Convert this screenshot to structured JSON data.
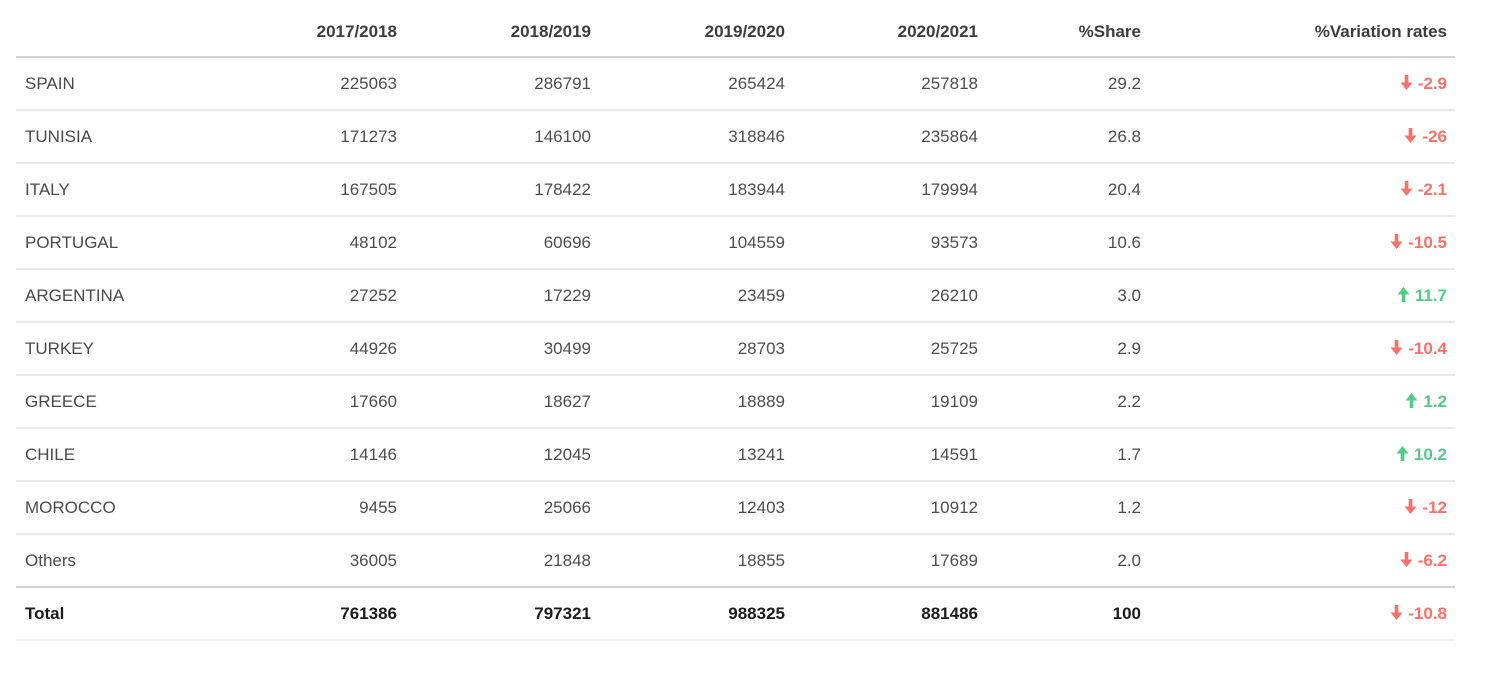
{
  "table": {
    "columns": [
      "",
      "2017/2018",
      "2018/2019",
      "2019/2020",
      "2020/2021",
      "%Share",
      "%Variation rates"
    ],
    "rows": [
      {
        "name": "SPAIN",
        "values": [
          "225063",
          "286791",
          "265424",
          "257818"
        ],
        "share": "29.2",
        "variation": {
          "direction": "down",
          "value": "-2.9"
        }
      },
      {
        "name": "TUNISIA",
        "values": [
          "171273",
          "146100",
          "318846",
          "235864"
        ],
        "share": "26.8",
        "variation": {
          "direction": "down",
          "value": "-26"
        }
      },
      {
        "name": "ITALY",
        "values": [
          "167505",
          "178422",
          "183944",
          "179994"
        ],
        "share": "20.4",
        "variation": {
          "direction": "down",
          "value": "-2.1"
        }
      },
      {
        "name": "PORTUGAL",
        "values": [
          "48102",
          "60696",
          "104559",
          "93573"
        ],
        "share": "10.6",
        "variation": {
          "direction": "down",
          "value": "-10.5"
        }
      },
      {
        "name": "ARGENTINA",
        "values": [
          "27252",
          "17229",
          "23459",
          "26210"
        ],
        "share": "3.0",
        "variation": {
          "direction": "up",
          "value": "11.7"
        }
      },
      {
        "name": "TURKEY",
        "values": [
          "44926",
          "30499",
          "28703",
          "25725"
        ],
        "share": "2.9",
        "variation": {
          "direction": "down",
          "value": "-10.4"
        }
      },
      {
        "name": "GREECE",
        "values": [
          "17660",
          "18627",
          "18889",
          "19109"
        ],
        "share": "2.2",
        "variation": {
          "direction": "up",
          "value": "1.2"
        }
      },
      {
        "name": "CHILE",
        "values": [
          "14146",
          "12045",
          "13241",
          "14591"
        ],
        "share": "1.7",
        "variation": {
          "direction": "up",
          "value": "10.2"
        }
      },
      {
        "name": "MOROCCO",
        "values": [
          "9455",
          "25066",
          "12403",
          "10912"
        ],
        "share": "1.2",
        "variation": {
          "direction": "down",
          "value": "-12"
        }
      },
      {
        "name": "Others",
        "values": [
          "36005",
          "21848",
          "18855",
          "17689"
        ],
        "share": "2.0",
        "variation": {
          "direction": "down",
          "value": "-6.2"
        }
      }
    ],
    "total": {
      "name": "Total",
      "values": [
        "761386",
        "797321",
        "988325",
        "881486"
      ],
      "share": "100",
      "variation": {
        "direction": "down",
        "value": "-10.8"
      }
    }
  },
  "colors": {
    "increase": "#53c98b",
    "decrease": "#f97168",
    "header_text": "#3d3d3d",
    "body_text": "#4e4e4e",
    "row_border": "#e9e9e9",
    "strong_border": "#d2d2d2"
  },
  "chart_data": {
    "type": "table",
    "title": "",
    "columns": [
      "",
      "2017/2018",
      "2018/2019",
      "2019/2020",
      "2020/2021",
      "%Share",
      "%Variation rates"
    ],
    "rows": [
      [
        "SPAIN",
        225063,
        286791,
        265424,
        257818,
        29.2,
        -2.9
      ],
      [
        "TUNISIA",
        171273,
        146100,
        318846,
        235864,
        26.8,
        -26
      ],
      [
        "ITALY",
        167505,
        178422,
        183944,
        179994,
        20.4,
        -2.1
      ],
      [
        "PORTUGAL",
        48102,
        60696,
        104559,
        93573,
        10.6,
        -10.5
      ],
      [
        "ARGENTINA",
        27252,
        17229,
        23459,
        26210,
        3.0,
        11.7
      ],
      [
        "TURKEY",
        44926,
        30499,
        28703,
        25725,
        2.9,
        -10.4
      ],
      [
        "GREECE",
        17660,
        18627,
        18889,
        19109,
        2.2,
        1.2
      ],
      [
        "CHILE",
        14146,
        12045,
        13241,
        14591,
        1.7,
        10.2
      ],
      [
        "MOROCCO",
        9455,
        25066,
        12403,
        10912,
        1.2,
        -12
      ],
      [
        "Others",
        36005,
        21848,
        18855,
        17689,
        2.0,
        -6.2
      ]
    ],
    "total_row": [
      "Total",
      761386,
      797321,
      988325,
      881486,
      100,
      -10.8
    ]
  }
}
